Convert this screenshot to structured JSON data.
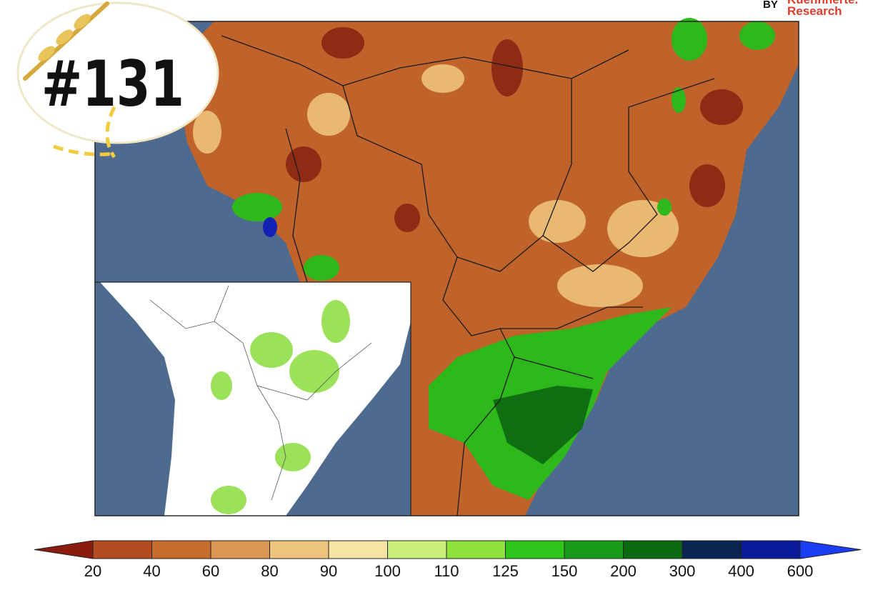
{
  "badge": {
    "number": "#131"
  },
  "brand": {
    "by": "BY",
    "name": "Kuehnherte.",
    "sub": "Research"
  },
  "colorbar": {
    "ticks": [
      20,
      40,
      60,
      80,
      90,
      100,
      110,
      125,
      150,
      200,
      300,
      400,
      600
    ],
    "colors": [
      "#8a1c0f",
      "#b34c20",
      "#c66c2c",
      "#db9652",
      "#edc47c",
      "#f7e3a3",
      "#c8ef7b",
      "#8ee23e",
      "#2ec41a",
      "#189a18",
      "#0c6a10",
      "#0b2552",
      "#0b1b9b",
      "#1a3cf5"
    ]
  }
}
